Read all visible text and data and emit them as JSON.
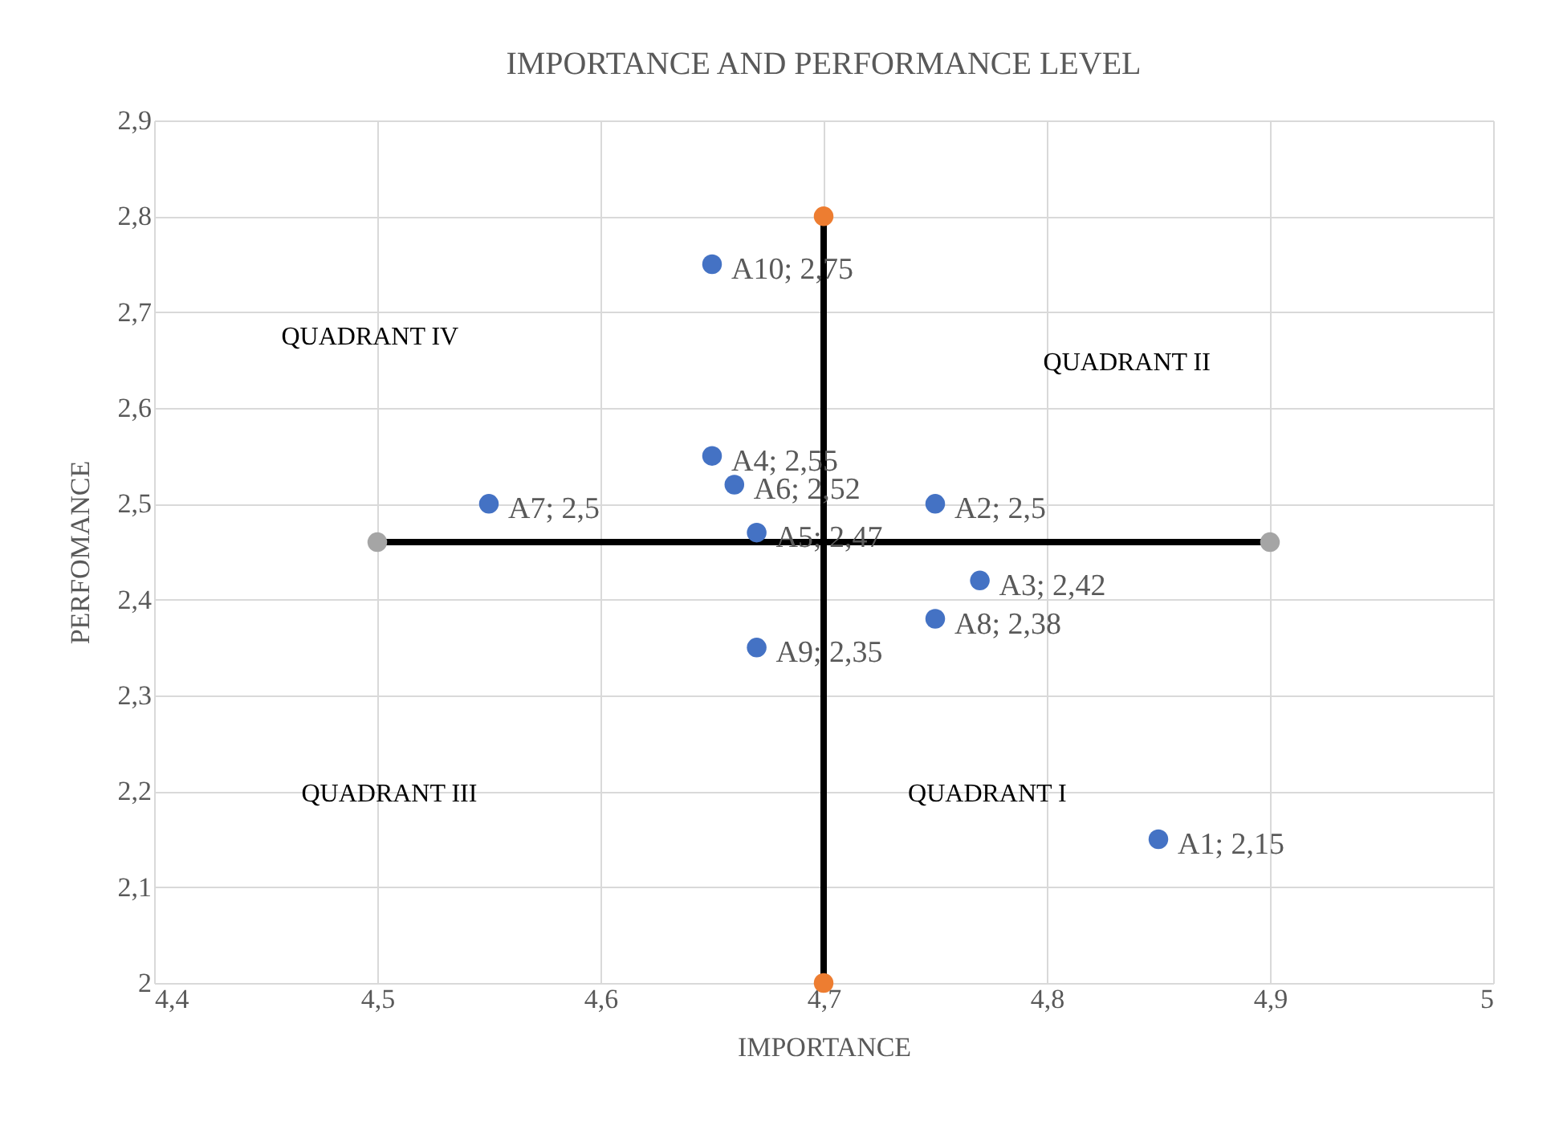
{
  "chart_data": {
    "type": "scatter",
    "title": "IMPORTANCE AND PERFORMANCE LEVEL",
    "xlabel": "IMPORTANCE",
    "ylabel": "PERFOMANCE",
    "xlim": [
      4.4,
      5
    ],
    "ylim": [
      2,
      2.9
    ],
    "xticks": [
      {
        "value": 4.4,
        "label": "4,4"
      },
      {
        "value": 4.5,
        "label": "4,5"
      },
      {
        "value": 4.6,
        "label": "4,6"
      },
      {
        "value": 4.7,
        "label": "4,7"
      },
      {
        "value": 4.8,
        "label": "4,8"
      },
      {
        "value": 4.9,
        "label": "4,9"
      },
      5
    ],
    "yticks": [
      2,
      {
        "value": 2.1,
        "label": "2,1"
      },
      {
        "value": 2.2,
        "label": "2,2"
      },
      {
        "value": 2.3,
        "label": "2,3"
      },
      {
        "value": 2.4,
        "label": "2,4"
      },
      {
        "value": 2.5,
        "label": "2,5"
      },
      {
        "value": 2.6,
        "label": "2,6"
      },
      {
        "value": 2.7,
        "label": "2,7"
      },
      {
        "value": 2.8,
        "label": "2,8"
      },
      {
        "value": 2.9,
        "label": "2,9"
      }
    ],
    "grid": true,
    "marker": "circle",
    "series": [
      {
        "type": "line",
        "color": "#000000",
        "marker": "none",
        "x": [
          4.7,
          4.7
        ],
        "values": [
          2,
          2.8
        ]
      },
      {
        "type": "line",
        "color": "#000000",
        "marker": "none",
        "x": [
          4.5,
          4.9
        ],
        "values": [
          2.46,
          2.46
        ]
      },
      {
        "type": "scatter",
        "color": "#ed7d31",
        "x": [
          4.7,
          4.7
        ],
        "values": [
          2,
          2.8
        ]
      },
      {
        "type": "scatter",
        "color": "#a5a5a5",
        "x": [
          4.5,
          4.9
        ],
        "values": [
          2.46,
          2.46
        ]
      },
      {
        "color": "#4472c4",
        "x": [
          4.85,
          4.75,
          4.77,
          4.65,
          4.67,
          4.66,
          4.55,
          4.75,
          4.67,
          4.65
        ],
        "values": [
          2.15,
          2.5,
          2.42,
          2.55,
          2.47,
          2.52,
          2.5,
          2.38,
          2.35,
          2.75
        ],
        "value_labels": [
          "A1; 2,15",
          "A2; 2,5",
          "A3; 2,42",
          "A4; 2,55",
          "A5; 2,47",
          "A6; 2,52",
          "A7; 2,5",
          "A8; 2,38",
          "A9; 2,35",
          "A10; 2,75"
        ]
      }
    ],
    "annotations": [
      "QUADRANT I",
      "QUADRANT II",
      "QUADRANT III",
      "QUADRANT IV"
    ]
  }
}
